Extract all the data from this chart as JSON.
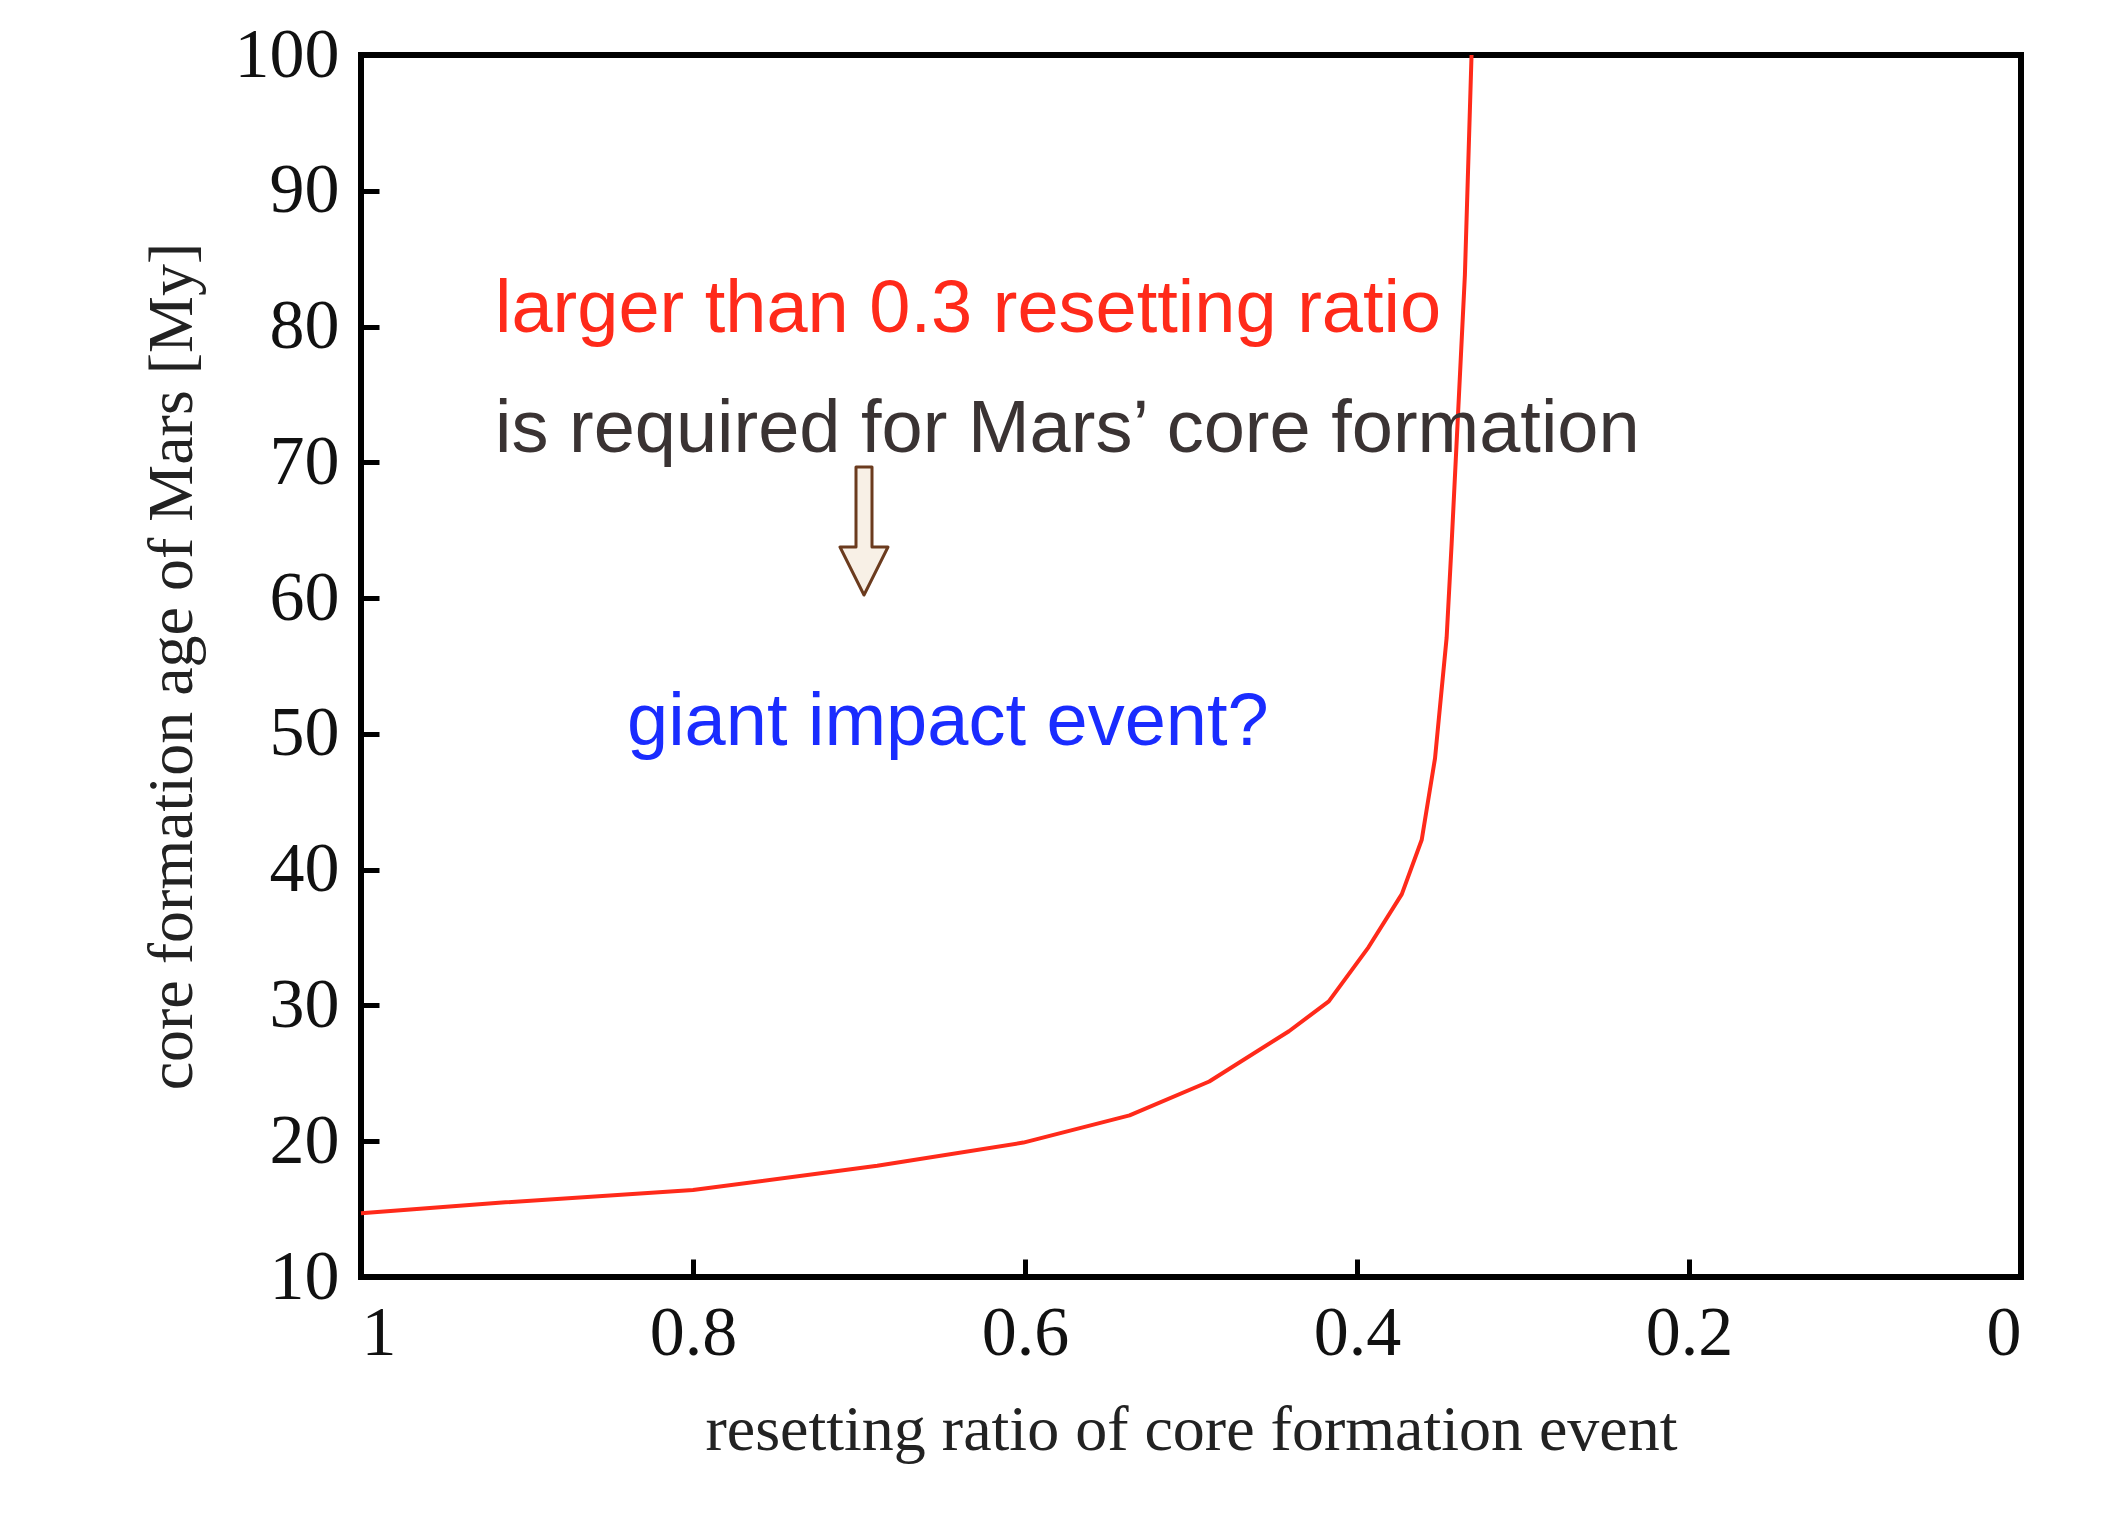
{
  "chart_data": {
    "type": "line",
    "xlabel": "resetting ratio of core formation event",
    "ylabel": "core formation age of Mars [My]",
    "x": [
      1,
      0.913,
      0.8,
      0.689,
      0.601,
      0.537,
      0.489,
      0.441,
      0.417,
      0.393,
      0.373,
      0.361,
      0.353,
      0.346,
      0.343,
      0.339,
      0.335,
      0.331
    ],
    "series": [
      {
        "color": "#ff2a1a",
        "values": [
          14.7,
          15.5,
          16.4,
          18.2,
          19.9,
          21.9,
          24.4,
          28.1,
          30.3,
          34.3,
          38.2,
          42.2,
          48.2,
          57.1,
          64,
          73.9,
          83.8,
          100
        ]
      }
    ],
    "xlim": [
      1,
      0
    ],
    "xticks": [
      1,
      0.8,
      0.6,
      0.4,
      0.2,
      0
    ],
    "ylim": [
      10,
      100
    ],
    "yticks": [
      10,
      20,
      30,
      40,
      50,
      60,
      70,
      80,
      90,
      100
    ],
    "grid": false,
    "legend": false,
    "marker": "none",
    "line_style": "solid",
    "annotations": [
      "larger than 0.3 resetting ratio",
      "is required for Mars’ core formation",
      "giant impact event?"
    ]
  }
}
